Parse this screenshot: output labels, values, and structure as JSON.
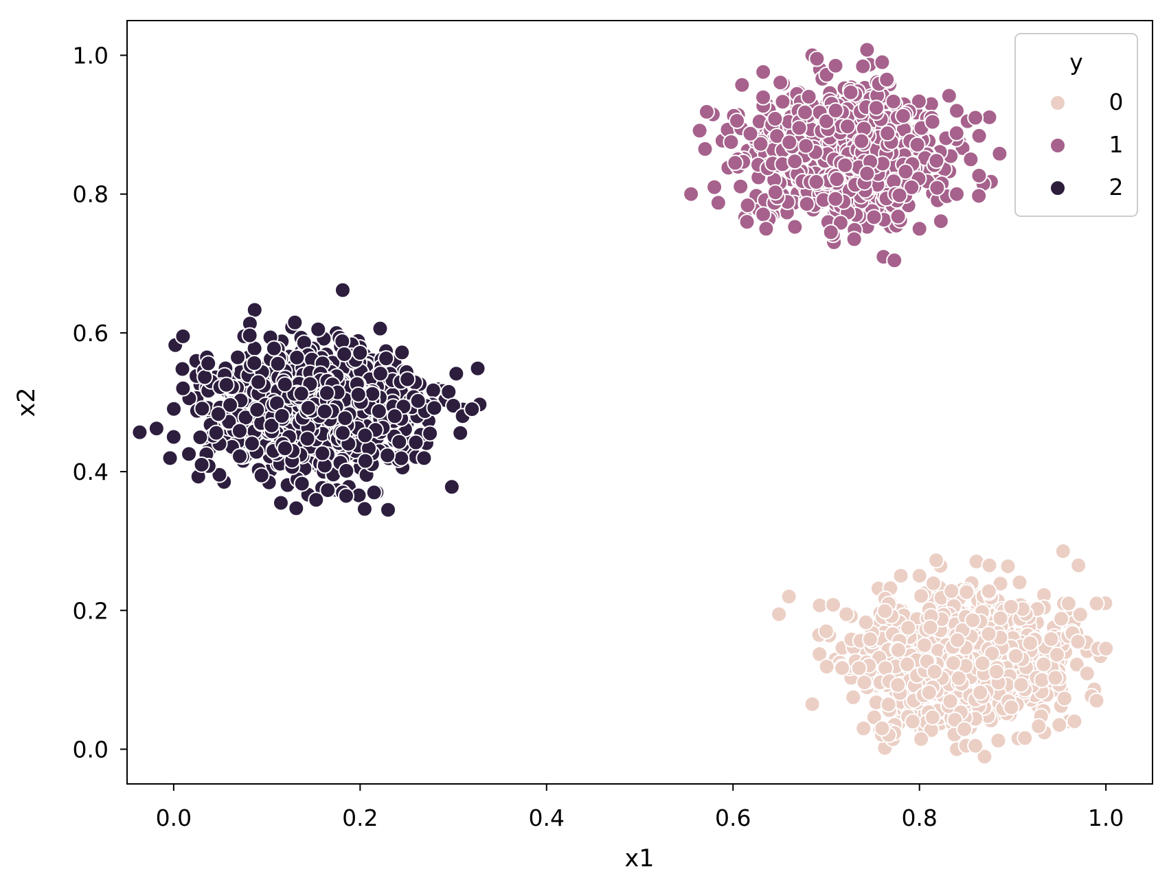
{
  "chart_data": {
    "type": "scatter",
    "xlabel": "x1",
    "ylabel": "x2",
    "xlim": [
      -0.05,
      1.05
    ],
    "ylim": [
      -0.05,
      1.05
    ],
    "xticks": [
      0.0,
      0.2,
      0.4,
      0.6,
      0.8,
      1.0
    ],
    "yticks": [
      0.0,
      0.2,
      0.4,
      0.6,
      0.8,
      1.0
    ],
    "xtick_labels": [
      "0.0",
      "0.2",
      "0.4",
      "0.6",
      "0.8",
      "1.0"
    ],
    "ytick_labels": [
      "0.0",
      "0.2",
      "0.4",
      "0.6",
      "0.8",
      "1.0"
    ],
    "grid": false,
    "legend": {
      "title": "y",
      "placement": "top-right",
      "entries": [
        "0",
        "1",
        "2"
      ]
    },
    "series": [
      {
        "name": "0",
        "color": "#ebcfc5",
        "center": [
          0.84,
          0.13
        ],
        "spread": [
          0.055,
          0.045
        ],
        "count": 1000,
        "seed": 11,
        "outliers": [
          [
            0.66,
            0.22
          ],
          [
            0.685,
            0.065
          ],
          [
            0.7,
            0.17
          ],
          [
            0.74,
            0.03
          ],
          [
            0.76,
            0.03
          ],
          [
            0.78,
            0.25
          ],
          [
            0.8,
            0.25
          ],
          [
            0.84,
            0.0
          ],
          [
            0.85,
            0.005
          ],
          [
            0.86,
            0.005
          ],
          [
            0.875,
            0.265
          ],
          [
            0.95,
            0.035
          ],
          [
            0.955,
            0.21
          ],
          [
            0.96,
            0.21
          ],
          [
            0.97,
            0.155
          ],
          [
            0.99,
            0.21
          ],
          [
            0.99,
            0.07
          ],
          [
            1.0,
            0.145
          ]
        ]
      },
      {
        "name": "1",
        "color": "#a6628c",
        "center": [
          0.72,
          0.86
        ],
        "spread": [
          0.05,
          0.045
        ],
        "count": 1000,
        "seed": 22,
        "outliers": [
          [
            0.555,
            0.8
          ],
          [
            0.57,
            0.865
          ],
          [
            0.58,
            0.81
          ],
          [
            0.615,
            0.76
          ],
          [
            0.685,
            1.0
          ],
          [
            0.69,
            0.995
          ],
          [
            0.71,
            0.985
          ],
          [
            0.705,
            0.745
          ],
          [
            0.73,
            0.735
          ],
          [
            0.76,
            0.99
          ],
          [
            0.765,
            0.965
          ],
          [
            0.8,
            0.75
          ],
          [
            0.84,
            0.92
          ],
          [
            0.855,
            0.85
          ],
          [
            0.86,
            0.91
          ],
          [
            0.84,
            0.8
          ]
        ]
      },
      {
        "name": "2",
        "color": "#2d1e3e",
        "center": [
          0.15,
          0.49
        ],
        "spread": [
          0.055,
          0.045
        ],
        "count": 1000,
        "seed": 33,
        "outliers": [
          [
            0.0,
            0.45
          ],
          [
            0.01,
            0.595
          ],
          [
            0.01,
            0.52
          ],
          [
            0.03,
            0.41
          ],
          [
            0.115,
            0.355
          ],
          [
            0.13,
            0.615
          ],
          [
            0.155,
            0.605
          ],
          [
            0.185,
            0.365
          ],
          [
            0.215,
            0.37
          ],
          [
            0.23,
            0.345
          ],
          [
            0.275,
            0.455
          ],
          [
            0.295,
            0.515
          ],
          [
            0.3,
            0.495
          ],
          [
            0.31,
            0.48
          ],
          [
            0.32,
            0.49
          ]
        ]
      }
    ]
  }
}
